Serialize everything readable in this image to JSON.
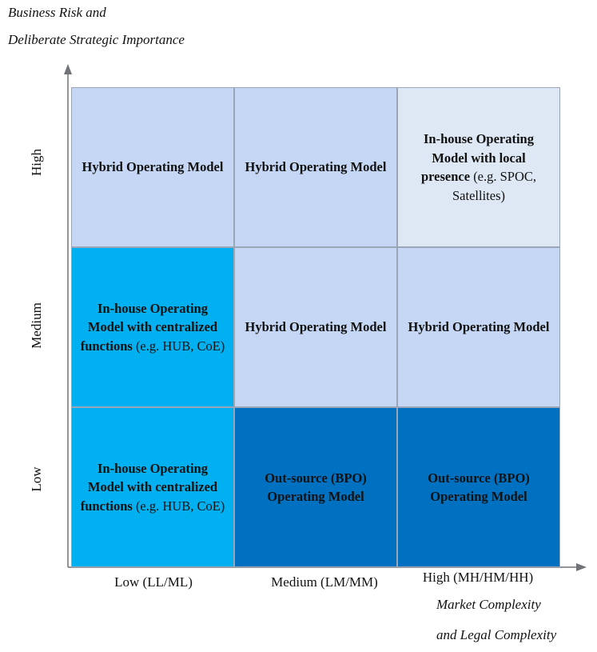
{
  "y_axis_title": [
    "Business Risk and",
    "Deliberate Strategic Importance"
  ],
  "x_axis_title": [
    "Market Complexity",
    "and Legal Complexity"
  ],
  "rows": [
    "High",
    "Medium",
    "Low"
  ],
  "columns": [
    "Low (LL/ML)",
    "Medium (LM/MM)",
    "High (MH/HM/HH)"
  ],
  "colors": {
    "light_blue": "#c5d7f4",
    "pale_blue": "#dde8f4",
    "cyan": "#00b0f0",
    "navy": "#0070c0"
  },
  "cells": {
    "high_low": {
      "bold": "Hybrid Operating Model",
      "normal": ""
    },
    "high_med": {
      "bold": "Hybrid Operating Model",
      "normal": ""
    },
    "high_high": {
      "bold": "In-house Operating Model with local presence",
      "normal": "(e.g. SPOC, Satellites)"
    },
    "med_low": {
      "bold": "In-house Operating Model with centralized functions",
      "normal": "(e.g. HUB, CoE)"
    },
    "med_med": {
      "bold": "Hybrid Operating Model",
      "normal": ""
    },
    "med_high": {
      "bold": "Hybrid Operating Model",
      "normal": ""
    },
    "low_low": {
      "bold": "In-house Operating Model with centralized functions",
      "normal": "(e.g. HUB, CoE)"
    },
    "low_med": {
      "bold": "Out-source (BPO) Operating Model",
      "normal": ""
    },
    "low_high": {
      "bold": "Out-source (BPO) Operating Model",
      "normal": ""
    }
  }
}
